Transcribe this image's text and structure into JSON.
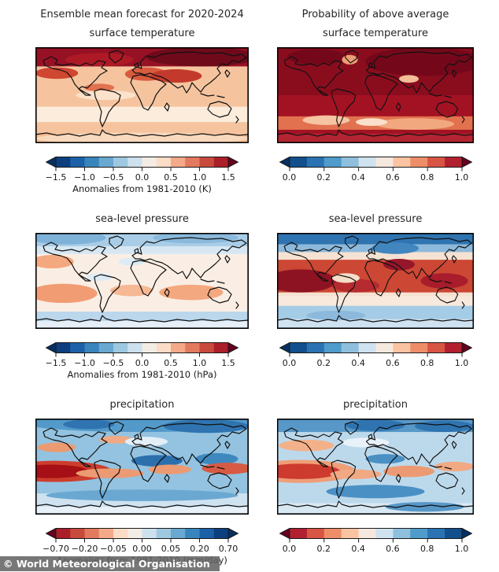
{
  "figure": {
    "watermark": "© World Meteorological Organisation",
    "column_headers": {
      "left": "Ensemble mean forecast for 2020-2024",
      "right": "Probability of above average"
    }
  },
  "chart_data": [
    {
      "id": "surface-temperature-ensemble-mean",
      "type": "heatmap",
      "projection": "world-map",
      "suptitle": "Ensemble mean forecast for 2020-2024",
      "title": "surface temperature",
      "colorbar": {
        "orientation": "horizontal",
        "extend": "both",
        "ticks": [
          "−1.5",
          "−1.0",
          "−0.5",
          "0.0",
          "0.5",
          "1.0",
          "1.5"
        ],
        "range": [
          -1.5,
          1.5
        ],
        "label": "Anomalies from 1981-2010 (K)",
        "tips": [
          "#053061",
          "#67001f"
        ],
        "colors": [
          "#0d3f7e",
          "#1c61a8",
          "#3885bd",
          "#69a8d0",
          "#9dc8e0",
          "#cde0ed",
          "#f2ece4",
          "#fbdcc6",
          "#f4a989",
          "#e27a5e",
          "#c84a3c",
          "#ab1f2a"
        ]
      },
      "map": {
        "base": "#f5c49e",
        "layers": [
          {
            "k": "r",
            "b": [
              0,
              0,
              1,
              0.2
            ],
            "c": "#971125"
          },
          {
            "k": "e",
            "b": [
              0.78,
              0.1,
              0.26,
              0.1
            ],
            "c": "#6f0a1b"
          },
          {
            "k": "e",
            "b": [
              0.3,
              0.13,
              0.16,
              0.07
            ],
            "c": "#ad1a26"
          },
          {
            "k": "e",
            "b": [
              0.1,
              0.27,
              0.1,
              0.06
            ],
            "c": "#cf4631"
          },
          {
            "k": "e",
            "b": [
              0.52,
              0.28,
              0.1,
              0.07
            ],
            "c": "#d95b3f"
          },
          {
            "k": "e",
            "b": [
              0.66,
              0.3,
              0.12,
              0.07
            ],
            "c": "#c33a2c"
          },
          {
            "k": "e",
            "b": [
              0.3,
              0.42,
              0.07,
              0.04
            ],
            "c": "#e2714f"
          },
          {
            "k": "r",
            "b": [
              0,
              0.62,
              1,
              0.16
            ],
            "c": "#fcecdc"
          },
          {
            "k": "e",
            "b": [
              0.33,
              0.5,
              0.14,
              0.05
            ],
            "c": "#fbe2ca"
          },
          {
            "k": "r",
            "b": [
              0,
              0.9,
              1,
              0.1
            ],
            "c": "#f4bd92"
          },
          {
            "k": "e",
            "b": [
              0.5,
              0.95,
              0.5,
              0.06
            ],
            "c": "#f9d9bd"
          }
        ]
      }
    },
    {
      "id": "surface-temperature-probability",
      "type": "heatmap",
      "projection": "world-map",
      "suptitle": "Probability of above average",
      "title": "surface temperature",
      "colorbar": {
        "orientation": "horizontal",
        "extend": "both",
        "ticks": [
          "0.0",
          "0.2",
          "0.4",
          "0.6",
          "0.8",
          "1.0"
        ],
        "range": [
          0.0,
          1.0
        ],
        "label": "",
        "tips": [
          "#053061",
          "#67001f"
        ],
        "colors": [
          "#11508c",
          "#2a72b2",
          "#4f9bcb",
          "#8ec0dd",
          "#cfe2ef",
          "#f5e8de",
          "#fac3a1",
          "#ee8e69",
          "#d85443",
          "#b22030"
        ]
      },
      "map": {
        "base": "#a31223",
        "layers": [
          {
            "k": "r",
            "b": [
              0,
              0,
              1,
              0.5
            ],
            "c": "#8a0d1e"
          },
          {
            "k": "e",
            "b": [
              0.75,
              0.15,
              0.3,
              0.15
            ],
            "c": "#74081a"
          },
          {
            "k": "e",
            "b": [
              0.2,
              0.1,
              0.15,
              0.08
            ],
            "c": "#74081a"
          },
          {
            "k": "e",
            "b": [
              0.37,
              0.13,
              0.04,
              0.05
            ],
            "c": "#eb9d74"
          },
          {
            "k": "e",
            "b": [
              0.67,
              0.33,
              0.05,
              0.04
            ],
            "c": "#f3bd98"
          },
          {
            "k": "r",
            "b": [
              0,
              0.72,
              1,
              0.14
            ],
            "c": "#e2714f"
          },
          {
            "k": "e",
            "b": [
              0.25,
              0.76,
              0.12,
              0.05
            ],
            "c": "#f6c4a2"
          },
          {
            "k": "e",
            "b": [
              0.7,
              0.8,
              0.2,
              0.06
            ],
            "c": "#f2a87f"
          },
          {
            "k": "e",
            "b": [
              0.48,
              0.78,
              0.08,
              0.04
            ],
            "c": "#fbe0cb"
          },
          {
            "k": "r",
            "b": [
              0,
              0.9,
              1,
              0.1
            ],
            "c": "#b22531"
          }
        ]
      }
    },
    {
      "id": "sea-level-pressure-ensemble-mean",
      "type": "heatmap",
      "projection": "world-map",
      "suptitle": "",
      "title": "sea-level pressure",
      "colorbar": {
        "orientation": "horizontal",
        "extend": "both",
        "ticks": [
          "−1.5",
          "−1.0",
          "−0.5",
          "0.0",
          "0.5",
          "1.0",
          "1.5"
        ],
        "range": [
          -1.5,
          1.5
        ],
        "label": "Anomalies from 1981-2010 (hPa)",
        "tips": [
          "#053061",
          "#67001f"
        ],
        "colors": [
          "#0d3f7e",
          "#1c61a8",
          "#3885bd",
          "#69a8d0",
          "#9dc8e0",
          "#cde0ed",
          "#f2ece4",
          "#fbdcc6",
          "#f4a989",
          "#e27a5e",
          "#c84a3c",
          "#ab1f2a"
        ]
      },
      "map": {
        "base": "#faeee4",
        "layers": [
          {
            "k": "r",
            "b": [
              0,
              0,
              1,
              0.14
            ],
            "c": "#a9cde7"
          },
          {
            "k": "e",
            "b": [
              0.15,
              0.05,
              0.18,
              0.07
            ],
            "c": "#7fb2d8"
          },
          {
            "k": "e",
            "b": [
              0.75,
              0.05,
              0.2,
              0.06
            ],
            "c": "#8ab9dc"
          },
          {
            "k": "r",
            "b": [
              0,
              0.14,
              1,
              0.08
            ],
            "c": "#d6e7f3"
          },
          {
            "k": "e",
            "b": [
              0.08,
              0.3,
              0.1,
              0.07
            ],
            "c": "#f4a87f"
          },
          {
            "k": "e",
            "b": [
              0.45,
              0.3,
              0.06,
              0.04
            ],
            "c": "#dcebf5"
          },
          {
            "k": "e",
            "b": [
              0.3,
              0.46,
              0.06,
              0.04
            ],
            "c": "#dcebf5"
          },
          {
            "k": "e",
            "b": [
              0.13,
              0.63,
              0.16,
              0.1
            ],
            "c": "#f29c73"
          },
          {
            "k": "e",
            "b": [
              0.45,
              0.6,
              0.1,
              0.06
            ],
            "c": "#f6b994"
          },
          {
            "k": "e",
            "b": [
              0.73,
              0.62,
              0.15,
              0.08
            ],
            "c": "#f4a87f"
          },
          {
            "k": "r",
            "b": [
              0,
              0.82,
              1,
              0.1
            ],
            "c": "#bad7ec"
          },
          {
            "k": "r",
            "b": [
              0,
              0.92,
              1,
              0.08
            ],
            "c": "#e6eff7"
          }
        ]
      }
    },
    {
      "id": "sea-level-pressure-probability",
      "type": "heatmap",
      "projection": "world-map",
      "suptitle": "",
      "title": "sea-level pressure",
      "colorbar": {
        "orientation": "horizontal",
        "extend": "both",
        "ticks": [
          "0.0",
          "0.2",
          "0.4",
          "0.6",
          "0.8",
          "1.0"
        ],
        "range": [
          0.0,
          1.0
        ],
        "label": "",
        "tips": [
          "#053061",
          "#67001f"
        ],
        "colors": [
          "#11508c",
          "#2a72b2",
          "#4f9bcb",
          "#8ec0dd",
          "#cfe2ef",
          "#f5e8de",
          "#fac3a1",
          "#ee8e69",
          "#d85443",
          "#b22030"
        ]
      },
      "map": {
        "base": "#f6e2d2",
        "layers": [
          {
            "k": "r",
            "b": [
              0,
              0,
              1,
              0.12
            ],
            "c": "#2f74b0"
          },
          {
            "k": "r",
            "b": [
              0,
              0.12,
              1,
              0.08
            ],
            "c": "#8cb9dc"
          },
          {
            "k": "e",
            "b": [
              0.6,
              0.16,
              0.12,
              0.06
            ],
            "c": "#4186be"
          },
          {
            "k": "r",
            "b": [
              0,
              0.28,
              1,
              0.34
            ],
            "c": "#cc4734"
          },
          {
            "k": "e",
            "b": [
              0.12,
              0.5,
              0.18,
              0.12
            ],
            "c": "#8e1322"
          },
          {
            "k": "e",
            "b": [
              0.62,
              0.33,
              0.08,
              0.06
            ],
            "c": "#96162a"
          },
          {
            "k": "e",
            "b": [
              0.85,
              0.5,
              0.12,
              0.08
            ],
            "c": "#a81c2b"
          },
          {
            "k": "e",
            "b": [
              0.4,
              0.55,
              0.12,
              0.07
            ],
            "c": "#b62b2f"
          },
          {
            "k": "e",
            "b": [
              0.35,
              0.47,
              0.07,
              0.05
            ],
            "c": "#f4ddc9"
          },
          {
            "k": "r",
            "b": [
              0,
              0.66,
              1,
              0.1
            ],
            "c": "#f8e9dc"
          },
          {
            "k": "r",
            "b": [
              0,
              0.76,
              1,
              0.14
            ],
            "c": "#a5cce6"
          },
          {
            "k": "r",
            "b": [
              0,
              0.9,
              1,
              0.1
            ],
            "c": "#cfe2f1"
          },
          {
            "k": "e",
            "b": [
              0.3,
              0.86,
              0.15,
              0.05
            ],
            "c": "#8cb9dc"
          }
        ]
      }
    },
    {
      "id": "precipitation-ensemble-mean",
      "type": "heatmap",
      "projection": "world-map",
      "suptitle": "",
      "title": "precipitation",
      "colorbar": {
        "orientation": "horizontal",
        "extend": "both",
        "ticks": [
          "−0.70",
          "−0.20",
          "−0.05",
          "0.00",
          "0.05",
          "0.20",
          "0.70"
        ],
        "range": [
          -0.7,
          0.7
        ],
        "label": "Anomalies from 1981-2010 (mm/day)",
        "tips": [
          "#67001f",
          "#053061"
        ],
        "colors": [
          "#ab1f2a",
          "#c84a3c",
          "#e27a5e",
          "#f4a989",
          "#fbdcc6",
          "#f2ece4",
          "#cde0ed",
          "#9dc8e0",
          "#69a8d0",
          "#3885bd",
          "#1c61a8",
          "#0d3f7e"
        ]
      },
      "map": {
        "base": "#93c3e0",
        "layers": [
          {
            "k": "e",
            "b": [
              0.5,
              0.05,
              0.55,
              0.09
            ],
            "c": "#539aca"
          },
          {
            "k": "e",
            "b": [
              0.8,
              0.08,
              0.2,
              0.07
            ],
            "c": "#2f74b0"
          },
          {
            "k": "e",
            "b": [
              0.25,
              0.06,
              0.12,
              0.05
            ],
            "c": "#2f74b0"
          },
          {
            "k": "e",
            "b": [
              0.1,
              0.3,
              0.09,
              0.05
            ],
            "c": "#eb9a72"
          },
          {
            "k": "e",
            "b": [
              0.38,
              0.22,
              0.08,
              0.04
            ],
            "c": "#f0a983"
          },
          {
            "k": "e",
            "b": [
              0.52,
              0.24,
              0.1,
              0.05
            ],
            "c": "#e3eef7"
          },
          {
            "k": "e",
            "b": [
              0.57,
              0.44,
              0.12,
              0.06
            ],
            "c": "#2c6fad"
          },
          {
            "k": "e",
            "b": [
              0.85,
              0.42,
              0.1,
              0.06
            ],
            "c": "#3d89bf"
          },
          {
            "k": "e",
            "b": [
              0.09,
              0.55,
              0.27,
              0.11
            ],
            "c": "#cc3d2d"
          },
          {
            "k": "e",
            "b": [
              0.07,
              0.55,
              0.18,
              0.07
            ],
            "c": "#a50f15"
          },
          {
            "k": "e",
            "b": [
              0.35,
              0.57,
              0.16,
              0.05
            ],
            "c": "#ec9a73"
          },
          {
            "k": "e",
            "b": [
              0.63,
              0.53,
              0.1,
              0.05
            ],
            "c": "#ec9a73"
          },
          {
            "k": "e",
            "b": [
              0.9,
              0.52,
              0.12,
              0.06
            ],
            "c": "#d75b44"
          },
          {
            "k": "r",
            "b": [
              0,
              0.78,
              1,
              0.22
            ],
            "c": "#cfe2f0"
          },
          {
            "k": "e",
            "b": [
              0.5,
              0.8,
              0.45,
              0.06
            ],
            "c": "#6aa8d2"
          },
          {
            "k": "r",
            "b": [
              0,
              0.92,
              1,
              0.08
            ],
            "c": "#e8f1f8"
          }
        ]
      }
    },
    {
      "id": "precipitation-probability",
      "type": "heatmap",
      "projection": "world-map",
      "suptitle": "",
      "title": "precipitation",
      "colorbar": {
        "orientation": "horizontal",
        "extend": "both",
        "ticks": [
          "0.0",
          "0.2",
          "0.4",
          "0.6",
          "0.8",
          "1.0"
        ],
        "range": [
          0.0,
          1.0
        ],
        "label": "",
        "tips": [
          "#67001f",
          "#053061"
        ],
        "colors": [
          "#b22030",
          "#d85443",
          "#ee8e69",
          "#fac3a1",
          "#f5e8de",
          "#cfe2ef",
          "#8ec0dd",
          "#4f9bcb",
          "#2a72b2",
          "#11508c"
        ]
      },
      "map": {
        "base": "#bcd9ec",
        "layers": [
          {
            "k": "r",
            "b": [
              0,
              0,
              1,
              0.14
            ],
            "c": "#5898c8"
          },
          {
            "k": "e",
            "b": [
              0.5,
              0.07,
              0.15,
              0.06
            ],
            "c": "#2f74b0"
          },
          {
            "k": "e",
            "b": [
              0.85,
              0.08,
              0.15,
              0.06
            ],
            "c": "#2f74b0"
          },
          {
            "k": "e",
            "b": [
              0.15,
              0.28,
              0.14,
              0.06
            ],
            "c": "#f3b18a"
          },
          {
            "k": "e",
            "b": [
              0.45,
              0.25,
              0.12,
              0.05
            ],
            "c": "#e9f2f9"
          },
          {
            "k": "e",
            "b": [
              0.55,
              0.42,
              0.1,
              0.05
            ],
            "c": "#4a90c4"
          },
          {
            "k": "e",
            "b": [
              0.12,
              0.55,
              0.28,
              0.12
            ],
            "c": "#ef9e77"
          },
          {
            "k": "e",
            "b": [
              0.12,
              0.55,
              0.2,
              0.08
            ],
            "c": "#cd3a2e"
          },
          {
            "k": "e",
            "b": [
              0.4,
              0.58,
              0.13,
              0.05
            ],
            "c": "#f0a983"
          },
          {
            "k": "e",
            "b": [
              0.67,
              0.55,
              0.13,
              0.06
            ],
            "c": "#ec9a73"
          },
          {
            "k": "e",
            "b": [
              0.9,
              0.5,
              0.1,
              0.05
            ],
            "c": "#f0a983"
          },
          {
            "k": "e",
            "b": [
              0.5,
              0.76,
              0.25,
              0.07
            ],
            "c": "#4a90c4"
          },
          {
            "k": "r",
            "b": [
              0,
              0.88,
              1,
              0.12
            ],
            "c": "#d8e8f3"
          },
          {
            "k": "e",
            "b": [
              0.75,
              0.92,
              0.2,
              0.05
            ],
            "c": "#5898c8"
          }
        ]
      }
    }
  ]
}
